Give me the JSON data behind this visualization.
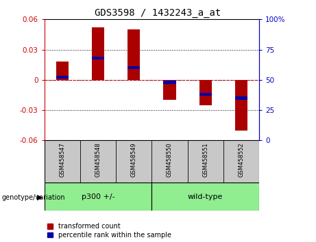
{
  "title": "GDS3598 / 1432243_a_at",
  "categories": [
    "GSM458547",
    "GSM458548",
    "GSM458549",
    "GSM458550",
    "GSM458551",
    "GSM458552"
  ],
  "red_values": [
    0.018,
    0.052,
    0.05,
    -0.02,
    -0.025,
    -0.05
  ],
  "blue_values_pct": [
    52,
    68,
    60,
    48,
    38,
    35
  ],
  "ylim_left": [
    -0.06,
    0.06
  ],
  "ylim_right": [
    0,
    100
  ],
  "yticks_left": [
    -0.06,
    -0.03,
    0,
    0.03,
    0.06
  ],
  "yticks_right": [
    0,
    25,
    50,
    75,
    100
  ],
  "group_header": "genotype/variation",
  "group1_label": "p300 +/-",
  "group2_label": "wild-type",
  "group_color": "#90EE90",
  "xlabel_bg": "#C8C8C8",
  "legend_red": "transformed count",
  "legend_blue": "percentile rank within the sample",
  "bar_width": 0.35,
  "red_color": "#AA0000",
  "blue_color": "#0000AA",
  "zero_line_color": "#CC0000",
  "tick_color_left": "#CC0000",
  "tick_color_right": "#0000CC"
}
